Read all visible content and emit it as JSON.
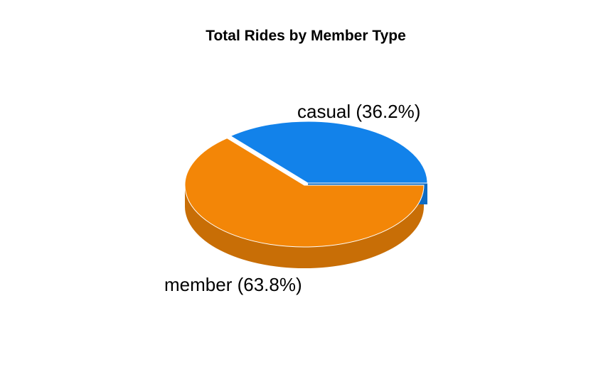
{
  "chart_data": {
    "type": "pie",
    "title": "Total Rides by Member Type",
    "three_d": true,
    "exploded": true,
    "slices": [
      {
        "category": "casual",
        "label": "casual (36.2%)",
        "value": 36.2,
        "color": "#1282EA",
        "side_color": "#0E6BC2"
      },
      {
        "category": "member",
        "label": "member (63.8%)",
        "value": 63.8,
        "color": "#F38607",
        "side_color": "#C86E06"
      }
    ]
  }
}
